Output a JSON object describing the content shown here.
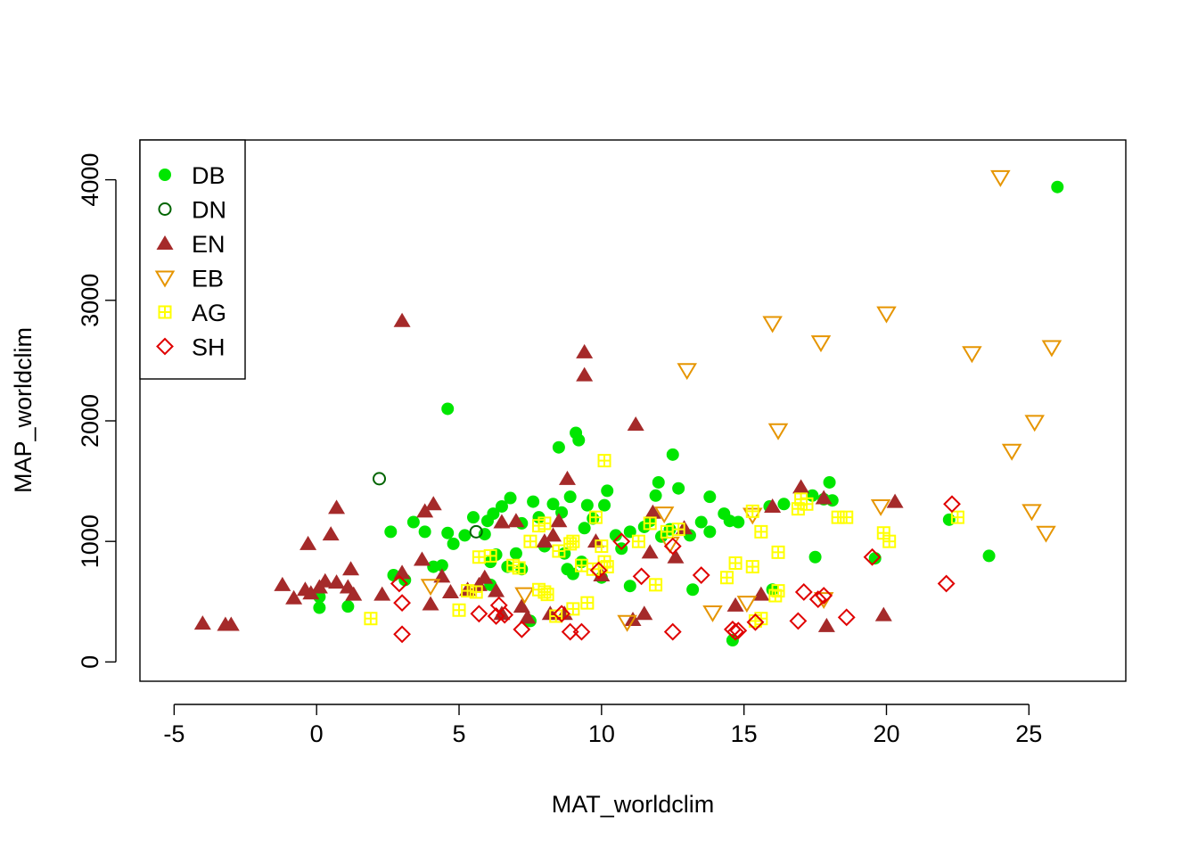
{
  "chart_data": {
    "type": "scatter",
    "title": "",
    "xlabel": "MAT_worldclim",
    "ylabel": "MAP_worldclim",
    "xlim": [
      -6.2,
      28.4
    ],
    "ylim": [
      -160,
      4330
    ],
    "xticks": [
      -5,
      0,
      5,
      10,
      15,
      20,
      25
    ],
    "yticks": [
      0,
      1000,
      2000,
      3000,
      4000
    ],
    "xtick_labels": [
      "-5",
      "0",
      "5",
      "10",
      "15",
      "20",
      "25"
    ],
    "ytick_labels": [
      "0",
      "1000",
      "2000",
      "3000",
      "4000"
    ],
    "legend_position": "top-left",
    "series": [
      {
        "name": "DB",
        "marker": "filled-circle",
        "color": "#00E600",
        "points": [
          [
            26.0,
            3940
          ],
          [
            4.6,
            2100
          ],
          [
            12.5,
            1720
          ],
          [
            8.5,
            1780
          ],
          [
            9.1,
            1900
          ],
          [
            9.2,
            1840
          ],
          [
            12.0,
            1490
          ],
          [
            12.7,
            1440
          ],
          [
            18.0,
            1490
          ],
          [
            11.9,
            1380
          ],
          [
            13.8,
            1370
          ],
          [
            14.3,
            1230
          ],
          [
            14.5,
            1170
          ],
          [
            14.8,
            1160
          ],
          [
            17.8,
            1350
          ],
          [
            18.1,
            1340
          ],
          [
            16.4,
            1310
          ],
          [
            17.4,
            1380
          ],
          [
            6.8,
            1360
          ],
          [
            7.6,
            1330
          ],
          [
            8.3,
            1310
          ],
          [
            9.5,
            1300
          ],
          [
            10.1,
            1300
          ],
          [
            10.2,
            1420
          ],
          [
            6.2,
            1230
          ],
          [
            5.5,
            1200
          ],
          [
            6.0,
            1170
          ],
          [
            6.5,
            1290
          ],
          [
            7.2,
            1150
          ],
          [
            7.8,
            1200
          ],
          [
            8.6,
            1240
          ],
          [
            8.9,
            1370
          ],
          [
            9.7,
            1190
          ],
          [
            3.4,
            1160
          ],
          [
            3.8,
            1080
          ],
          [
            2.6,
            1080
          ],
          [
            4.6,
            1070
          ],
          [
            5.2,
            1050
          ],
          [
            4.8,
            980
          ],
          [
            5.9,
            1060
          ],
          [
            6.3,
            890
          ],
          [
            7.0,
            900
          ],
          [
            8.0,
            960
          ],
          [
            8.7,
            900
          ],
          [
            9.4,
            1110
          ],
          [
            10.5,
            1050
          ],
          [
            10.7,
            940
          ],
          [
            11.0,
            1080
          ],
          [
            11.5,
            1120
          ],
          [
            11.7,
            1170
          ],
          [
            12.1,
            1040
          ],
          [
            12.4,
            1100
          ],
          [
            13.1,
            1050
          ],
          [
            13.5,
            1160
          ],
          [
            13.8,
            1080
          ],
          [
            15.9,
            1290
          ],
          [
            17.5,
            870
          ],
          [
            19.6,
            860
          ],
          [
            22.2,
            1180
          ],
          [
            23.6,
            880
          ],
          [
            4.1,
            790
          ],
          [
            4.4,
            800
          ],
          [
            6.1,
            830
          ],
          [
            6.7,
            790
          ],
          [
            7.2,
            770
          ],
          [
            8.8,
            770
          ],
          [
            9.0,
            730
          ],
          [
            10.0,
            700
          ],
          [
            11.0,
            630
          ],
          [
            13.2,
            600
          ],
          [
            14.6,
            180
          ],
          [
            16.0,
            600
          ],
          [
            2.7,
            720
          ],
          [
            3.1,
            680
          ],
          [
            0.1,
            540
          ],
          [
            0.1,
            450
          ],
          [
            1.1,
            460
          ],
          [
            7.5,
            340
          ],
          [
            6.1,
            640
          ],
          [
            9.3,
            830
          ]
        ]
      },
      {
        "name": "DN",
        "marker": "open-circle",
        "color": "#006400",
        "points": [
          [
            2.2,
            1520
          ],
          [
            5.6,
            1080
          ]
        ]
      },
      {
        "name": "EN",
        "marker": "filled-triangle",
        "color": "#A52A2A",
        "points": [
          [
            3.0,
            2830
          ],
          [
            9.4,
            2570
          ],
          [
            9.4,
            2380
          ],
          [
            11.2,
            1970
          ],
          [
            8.8,
            1520
          ],
          [
            17.0,
            1450
          ],
          [
            20.3,
            1330
          ],
          [
            17.8,
            1360
          ],
          [
            16.0,
            1290
          ],
          [
            12.9,
            1110
          ],
          [
            11.8,
            1240
          ],
          [
            4.1,
            1310
          ],
          [
            3.8,
            1250
          ],
          [
            0.7,
            1280
          ],
          [
            -0.3,
            980
          ],
          [
            0.5,
            1060
          ],
          [
            6.5,
            1160
          ],
          [
            7.0,
            1170
          ],
          [
            8.5,
            1170
          ],
          [
            8.0,
            1000
          ],
          [
            11.7,
            910
          ],
          [
            12.6,
            870
          ],
          [
            1.2,
            770
          ],
          [
            0.3,
            670
          ],
          [
            -1.2,
            640
          ],
          [
            -0.8,
            530
          ],
          [
            -0.4,
            600
          ],
          [
            0.1,
            620
          ],
          [
            0.7,
            660
          ],
          [
            1.1,
            620
          ],
          [
            1.3,
            560
          ],
          [
            2.3,
            560
          ],
          [
            3.0,
            740
          ],
          [
            3.7,
            850
          ],
          [
            4.0,
            480
          ],
          [
            4.4,
            710
          ],
          [
            4.7,
            580
          ],
          [
            5.3,
            600
          ],
          [
            5.9,
            700
          ],
          [
            6.3,
            590
          ],
          [
            7.2,
            460
          ],
          [
            7.4,
            370
          ],
          [
            8.2,
            400
          ],
          [
            8.7,
            400
          ],
          [
            10.0,
            720
          ],
          [
            11.5,
            400
          ],
          [
            11.1,
            350
          ],
          [
            14.7,
            470
          ],
          [
            15.6,
            560
          ],
          [
            17.9,
            300
          ],
          [
            19.9,
            390
          ],
          [
            -4.0,
            320
          ],
          [
            -3.2,
            310
          ],
          [
            -3.0,
            310
          ],
          [
            -0.2,
            570
          ],
          [
            6.5,
            400
          ],
          [
            8.3,
            1050
          ],
          [
            9.8,
            1000
          ],
          [
            5.7,
            640
          ]
        ]
      },
      {
        "name": "EB",
        "marker": "open-triangle-down",
        "color": "#E69500",
        "points": [
          [
            24.0,
            4020
          ],
          [
            20.0,
            2890
          ],
          [
            16.0,
            2810
          ],
          [
            17.7,
            2650
          ],
          [
            25.8,
            2610
          ],
          [
            23.0,
            2560
          ],
          [
            13.0,
            2420
          ],
          [
            16.2,
            1920
          ],
          [
            25.2,
            1990
          ],
          [
            24.4,
            1750
          ],
          [
            25.1,
            1250
          ],
          [
            25.6,
            1070
          ],
          [
            19.8,
            1290
          ],
          [
            15.3,
            1220
          ],
          [
            12.2,
            1230
          ],
          [
            17.8,
            520
          ],
          [
            15.1,
            490
          ],
          [
            13.9,
            410
          ],
          [
            10.9,
            330
          ],
          [
            4.0,
            630
          ],
          [
            12.4,
            980
          ],
          [
            7.3,
            560
          ]
        ]
      },
      {
        "name": "AG",
        "marker": "square-plus",
        "color": "#FFFF00",
        "points": [
          [
            10.1,
            1670
          ],
          [
            17.0,
            1350
          ],
          [
            16.9,
            1270
          ],
          [
            17.2,
            1310
          ],
          [
            22.5,
            1200
          ],
          [
            18.3,
            1200
          ],
          [
            18.6,
            1200
          ],
          [
            19.9,
            1070
          ],
          [
            20.1,
            1000
          ],
          [
            15.3,
            1250
          ],
          [
            15.6,
            1080
          ],
          [
            16.2,
            910
          ],
          [
            14.7,
            820
          ],
          [
            14.4,
            700
          ],
          [
            15.3,
            790
          ],
          [
            9.8,
            1200
          ],
          [
            11.3,
            1000
          ],
          [
            11.7,
            1150
          ],
          [
            12.3,
            1080
          ],
          [
            12.7,
            1100
          ],
          [
            7.5,
            1000
          ],
          [
            8.0,
            1150
          ],
          [
            7.8,
            1130
          ],
          [
            8.5,
            920
          ],
          [
            9.0,
            1000
          ],
          [
            9.3,
            800
          ],
          [
            9.7,
            770
          ],
          [
            10.0,
            960
          ],
          [
            10.2,
            790
          ],
          [
            6.9,
            800
          ],
          [
            7.1,
            780
          ],
          [
            5.7,
            870
          ],
          [
            6.1,
            880
          ],
          [
            5.3,
            590
          ],
          [
            5.6,
            580
          ],
          [
            5.0,
            430
          ],
          [
            7.8,
            600
          ],
          [
            8.0,
            580
          ],
          [
            8.1,
            560
          ],
          [
            8.4,
            380
          ],
          [
            9.0,
            440
          ],
          [
            9.5,
            490
          ],
          [
            11.9,
            640
          ],
          [
            15.6,
            360
          ],
          [
            15.4,
            340
          ],
          [
            1.9,
            360
          ],
          [
            16.2,
            590
          ],
          [
            16.1,
            550
          ],
          [
            10.1,
            830
          ],
          [
            8.9,
            980
          ]
        ]
      },
      {
        "name": "SH",
        "marker": "open-diamond",
        "color": "#E00000",
        "points": [
          [
            22.3,
            1310
          ],
          [
            22.1,
            650
          ],
          [
            19.5,
            870
          ],
          [
            18.6,
            370
          ],
          [
            17.8,
            550
          ],
          [
            17.1,
            580
          ],
          [
            16.9,
            340
          ],
          [
            15.4,
            330
          ],
          [
            14.6,
            270
          ],
          [
            14.7,
            250
          ],
          [
            14.8,
            260
          ],
          [
            13.5,
            720
          ],
          [
            12.5,
            960
          ],
          [
            12.5,
            250
          ],
          [
            11.4,
            710
          ],
          [
            10.7,
            1000
          ],
          [
            9.9,
            760
          ],
          [
            9.3,
            250
          ],
          [
            8.6,
            400
          ],
          [
            8.9,
            250
          ],
          [
            7.2,
            270
          ],
          [
            6.6,
            390
          ],
          [
            6.4,
            470
          ],
          [
            6.3,
            380
          ],
          [
            5.7,
            400
          ],
          [
            3.0,
            490
          ],
          [
            3.0,
            230
          ],
          [
            2.9,
            650
          ],
          [
            17.6,
            520
          ]
        ]
      }
    ]
  }
}
